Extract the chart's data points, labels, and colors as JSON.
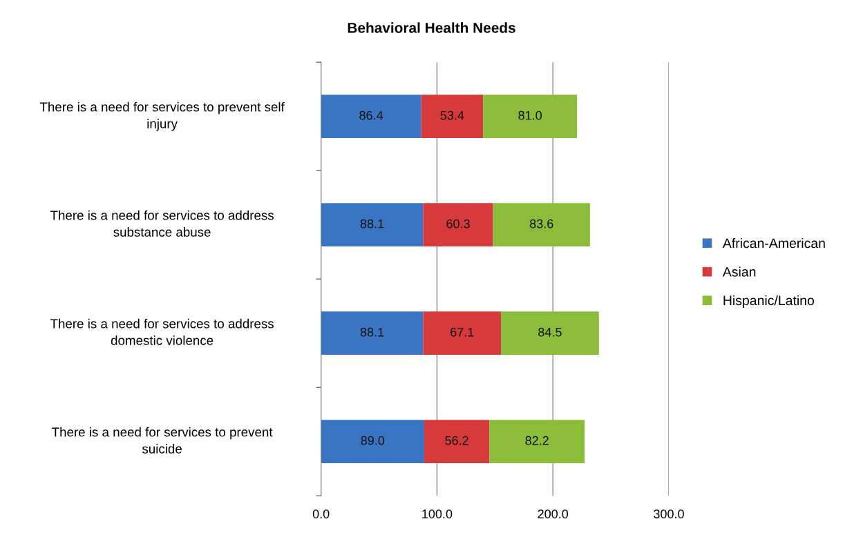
{
  "chart_data": {
    "type": "bar",
    "orientation": "horizontal",
    "stacked": true,
    "title": "Behavioral Health Needs",
    "categories": [
      "There is a need for services to prevent self injury",
      "There is a need for services to address substance abuse",
      "There is a need for services to address domestic violence",
      "There is a need for services to prevent suicide"
    ],
    "series": [
      {
        "name": "African-American",
        "color": "#3a75c4",
        "values": [
          86.4,
          88.1,
          88.1,
          89.0
        ],
        "value_labels": [
          "86.4",
          "88.1",
          "88.1",
          "89.0"
        ]
      },
      {
        "name": "Asian",
        "color": "#d63a3a",
        "values": [
          53.4,
          60.3,
          67.1,
          56.2
        ],
        "value_labels": [
          "53.4",
          "60.3",
          "67.1",
          "56.2"
        ]
      },
      {
        "name": "Hispanic/Latino",
        "color": "#8cbd3a",
        "values": [
          81.0,
          83.6,
          84.5,
          82.2
        ],
        "value_labels": [
          "81.0",
          "83.6",
          "84.5",
          "82.2"
        ]
      }
    ],
    "xlim": [
      0,
      300
    ],
    "xticks": [
      {
        "value": 0,
        "label": "0.0"
      },
      {
        "value": 100,
        "label": "100.0"
      },
      {
        "value": 200,
        "label": "200.0"
      },
      {
        "value": 300,
        "label": "300.0"
      }
    ],
    "grid": "x",
    "legend": "right"
  }
}
